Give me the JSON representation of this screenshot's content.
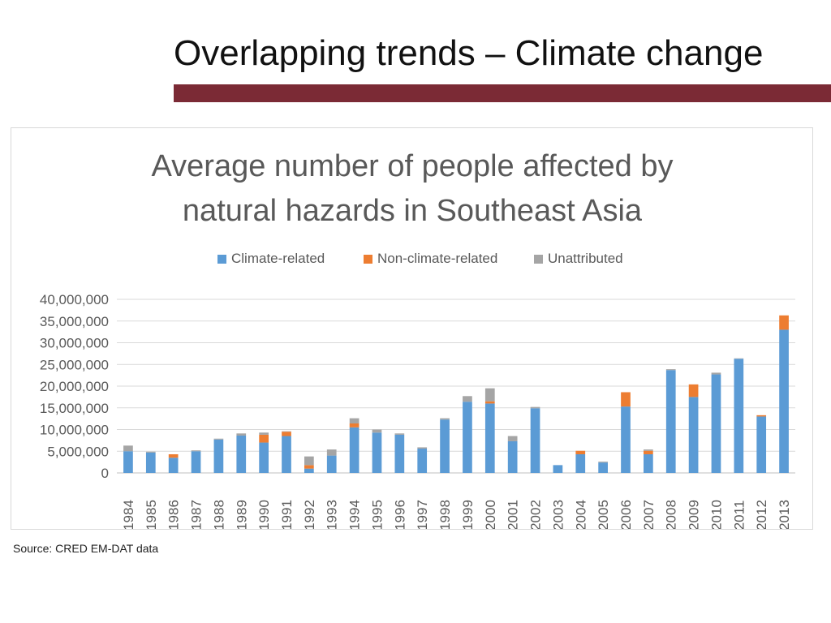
{
  "slide": {
    "title": "Overlapping trends – Climate change",
    "source": "Source: CRED EM-DAT data"
  },
  "colors": {
    "climate": "#5b9bd5",
    "non_climate": "#ed7d31",
    "unattributed": "#a5a5a5",
    "accent_bar": "#7b2a35"
  },
  "chart_data": {
    "type": "bar",
    "stacked": true,
    "title_lines": [
      "Average number of people affected by",
      "natural hazards in Southeast Asia"
    ],
    "categories": [
      "1984",
      "1985",
      "1986",
      "1987",
      "1988",
      "1989",
      "1990",
      "1991",
      "1992",
      "1993",
      "1994",
      "1995",
      "1996",
      "1997",
      "1998",
      "1999",
      "2000",
      "2001",
      "2002",
      "2003",
      "2004",
      "2005",
      "2006",
      "2007",
      "2008",
      "2009",
      "2010",
      "2011",
      "2012",
      "2013"
    ],
    "series": [
      {
        "name": "Climate-related",
        "color": "#5b9bd5",
        "values": [
          5000000,
          4700000,
          3500000,
          5000000,
          7700000,
          8600000,
          7000000,
          8500000,
          1000000,
          4000000,
          10500000,
          9300000,
          8800000,
          5600000,
          12300000,
          16400000,
          16000000,
          7300000,
          14900000,
          1800000,
          4300000,
          2400000,
          15300000,
          4300000,
          23700000,
          17500000,
          22700000,
          26300000,
          13000000,
          33000000
        ]
      },
      {
        "name": "Non-climate-related",
        "color": "#ed7d31",
        "values": [
          0,
          0,
          800000,
          0,
          0,
          0,
          1800000,
          1000000,
          800000,
          0,
          900000,
          0,
          0,
          0,
          0,
          0,
          500000,
          0,
          0,
          0,
          800000,
          0,
          3300000,
          800000,
          0,
          2900000,
          0,
          0,
          300000,
          3300000
        ]
      },
      {
        "name": "Unattributed",
        "color": "#a5a5a5",
        "values": [
          1300000,
          200000,
          0,
          200000,
          200000,
          500000,
          500000,
          100000,
          2000000,
          1400000,
          1200000,
          700000,
          300000,
          300000,
          300000,
          1300000,
          3000000,
          1200000,
          300000,
          0,
          0,
          200000,
          0,
          300000,
          200000,
          0,
          400000,
          100000,
          0,
          0
        ]
      }
    ],
    "y_ticks": [
      0,
      5000000,
      10000000,
      15000000,
      20000000,
      25000000,
      30000000,
      35000000,
      40000000
    ],
    "y_tick_labels": [
      "0",
      "5,000,000",
      "10,000,000",
      "15,000,000",
      "20,000,000",
      "25,000,000",
      "30,000,000",
      "35,000,000",
      "40,000,000"
    ],
    "ylim": [
      0,
      40000000
    ],
    "legend_position": "top-center",
    "gridlines": true,
    "xlabel": "",
    "ylabel": ""
  }
}
